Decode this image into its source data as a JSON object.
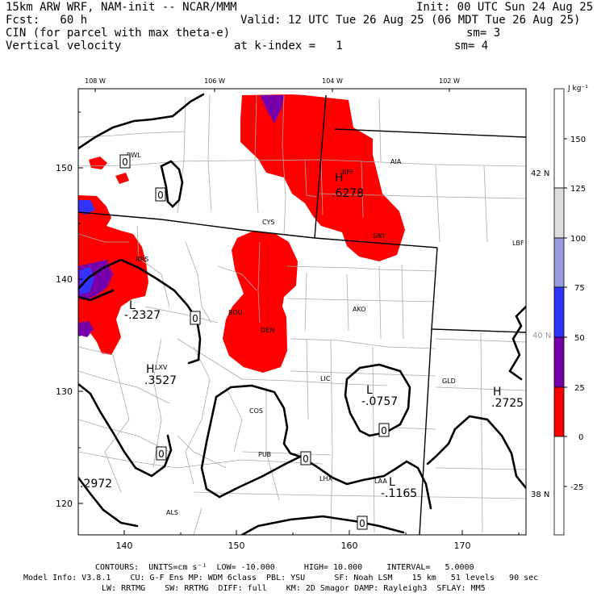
{
  "header": {
    "model_line": "15km ARW WRF, NAM-init -- NCAR/MMM",
    "init_line": "Init: 00 UTC Sun 24 Aug 25",
    "fcst_line": "Fcst:   60 h",
    "valid_line": "Valid: 12 UTC Tue 26 Aug 25 (06 MDT Tue 26 Aug 25)",
    "field1": "CIN (for parcel with max theta-e)",
    "field1_smooth": "sm= 3",
    "field2": "Vertical velocity",
    "kindex": "at k-index =   1",
    "field2_smooth": "sm= 4"
  },
  "map": {
    "lon_labels": [
      "108 W",
      "106 W",
      "104 W",
      "102 W"
    ],
    "lat_labels": [
      "42 N",
      "40 N",
      "38 N"
    ],
    "y_ticks": [
      "150",
      "140",
      "130",
      "120"
    ],
    "x_ticks": [
      "140",
      "150",
      "160",
      "170"
    ],
    "stations": [
      "RWL",
      "CYS",
      "BFF",
      "AIA",
      "SNY",
      "LBF",
      "RRS",
      "BOU",
      "DEN",
      "AKO",
      "LXV",
      "LIC",
      "GLD",
      "COS",
      "PUB",
      "LHX",
      "LAA",
      "ALS"
    ],
    "contour_zero_label": "0",
    "extrema": [
      {
        "letter": "H",
        "value": ".6278"
      },
      {
        "letter": "L",
        "value": "-.2327"
      },
      {
        "letter": "H",
        "value": ".3527"
      },
      {
        "letter": "L",
        "value": "-.0757"
      },
      {
        "letter": "H",
        "value": ".2725"
      },
      {
        "letter": "L",
        "value": "-.1165"
      },
      {
        "letter": "",
        "value": ".2972"
      }
    ],
    "colors": {
      "red": "#ff0000",
      "purple": "#7700aa",
      "blue": "#3333ff",
      "lavender": "#9999dd",
      "gray": "#dddddd",
      "state_line": "#000000",
      "county_line": "#aaaaaa"
    }
  },
  "colorbar": {
    "unit": "J kg⁻¹",
    "labels": [
      "150",
      "125",
      "100",
      "75",
      "50",
      "25",
      "0",
      "-25"
    ]
  },
  "footer": {
    "contours": "CONTOURS:  UNITS=cm s⁻¹  LOW= -10.000      HIGH= 10.000     INTERVAL=   5.0000",
    "model_info1": "Model Info: V3.8.1    CU: G-F Ens MP: WDM 6class  PBL: YSU      SF: Noah LSM    15 km   51 levels   90 sec",
    "model_info2": "LW: RRTMG    SW: RRTMG  DIFF: full    KM: 2D Smagor DAMP: Rayleigh3  SFLAY: MM5"
  }
}
